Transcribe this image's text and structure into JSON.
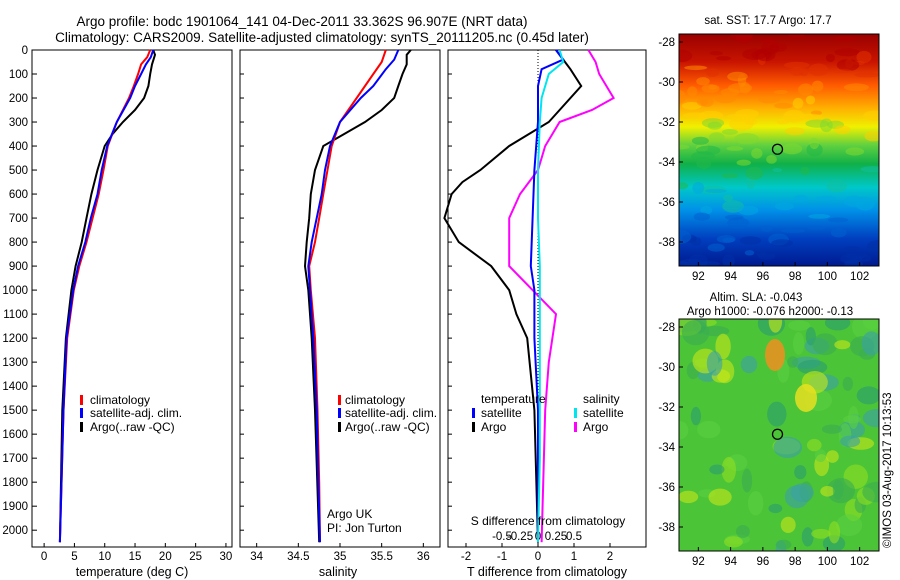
{
  "header": {
    "title1": "Argo profile: bodc 1901064_141 04-Dec-2011 33.362S 96.907E (NRT data)",
    "title2": "Climatology: CARS2009. Satellite-adjusted climatology: synTS_20111205.nc (0.45d later)"
  },
  "colors": {
    "climatology": "#ff0000",
    "satellite": "#0000ff",
    "argo": "#000000",
    "sat_cyan": "#00e5ee",
    "argo_magenta": "#ff00ff"
  },
  "depth_ticks": [
    "0",
    "100",
    "200",
    "300",
    "400",
    "500",
    "600",
    "700",
    "800",
    "900",
    "1000",
    "1100",
    "1200",
    "1300",
    "1400",
    "1500",
    "1600",
    "1700",
    "1800",
    "1900",
    "2000"
  ],
  "chart_data": [
    {
      "type": "line",
      "xlabel": "temperature (deg C)",
      "xlim": [
        -2,
        31
      ],
      "ylim": [
        2070,
        0
      ],
      "xticks": [
        "0",
        "5",
        "10",
        "15",
        "20",
        "25",
        "30"
      ],
      "legend": [
        "climatology",
        "satellite-adj. clim.",
        "Argo(..raw -QC)"
      ],
      "series": [
        {
          "name": "climatology",
          "depth": [
            0,
            30,
            60,
            100,
            150,
            200,
            300,
            400,
            500,
            600,
            700,
            800,
            900,
            1000,
            1200,
            1500,
            2050
          ],
          "values": [
            17.5,
            17,
            16,
            15.5,
            14.8,
            14,
            12,
            10.5,
            9.8,
            9,
            8,
            7,
            5.8,
            4.9,
            3.8,
            3.2,
            2.6
          ]
        },
        {
          "name": "satellite-adj. clim.",
          "depth": [
            0,
            30,
            60,
            100,
            150,
            200,
            300,
            400,
            500,
            600,
            700,
            800,
            900,
            1000,
            1200,
            1500,
            2050
          ],
          "values": [
            18,
            17.6,
            16.8,
            16,
            15,
            14.2,
            12,
            10.4,
            9.5,
            8.8,
            7.7,
            6.8,
            5.6,
            4.8,
            3.7,
            3.2,
            2.6
          ]
        },
        {
          "name": "Argo(..raw -QC)",
          "depth": [
            0,
            20,
            60,
            100,
            150,
            200,
            250,
            300,
            350,
            400,
            500,
            600,
            700,
            800,
            900,
            1000,
            1200,
            1500,
            2050
          ],
          "values": [
            18,
            18.3,
            17.8,
            17.5,
            17.2,
            16.5,
            15,
            13,
            11.3,
            10,
            8.8,
            7.8,
            7,
            6.2,
            5.2,
            4.5,
            3.6,
            3,
            2.6
          ]
        }
      ]
    },
    {
      "type": "line",
      "xlabel": "salinity",
      "xlim": [
        33.8,
        36.2
      ],
      "ylim": [
        2070,
        0
      ],
      "xticks": [
        "34",
        "34.5",
        "35",
        "35.5",
        "36"
      ],
      "legend": [
        "climatology",
        "satellite-adj. clim.",
        "Argo(..raw -QC)"
      ],
      "annotation": [
        "Argo UK",
        "PI: Jon Turton"
      ],
      "series": [
        {
          "name": "climatology",
          "depth": [
            0,
            50,
            100,
            150,
            200,
            300,
            400,
            500,
            600,
            700,
            800,
            900,
            1000,
            1200,
            1500,
            1800,
            2050
          ],
          "values": [
            35.55,
            35.5,
            35.4,
            35.3,
            35.2,
            35,
            34.9,
            34.85,
            34.8,
            34.75,
            34.7,
            34.63,
            34.65,
            34.7,
            34.73,
            34.75,
            34.76
          ]
        },
        {
          "name": "satellite-adj. clim.",
          "depth": [
            0,
            40,
            80,
            150,
            200,
            300,
            400,
            500,
            600,
            700,
            800,
            900,
            1000,
            1200,
            1500,
            1800,
            2050
          ],
          "values": [
            35.7,
            35.65,
            35.55,
            35.4,
            35.25,
            35,
            34.88,
            34.82,
            34.78,
            34.72,
            34.66,
            34.62,
            34.64,
            34.68,
            34.72,
            34.74,
            34.76
          ]
        },
        {
          "name": "Argo(..raw -QC)",
          "depth": [
            0,
            20,
            60,
            100,
            150,
            200,
            250,
            300,
            350,
            400,
            500,
            600,
            700,
            800,
            900,
            1000,
            1200,
            1500,
            2050
          ],
          "values": [
            35.85,
            35.8,
            35.8,
            35.75,
            35.7,
            35.65,
            35.5,
            35.3,
            35.05,
            34.8,
            34.7,
            34.65,
            34.63,
            34.6,
            34.58,
            34.62,
            34.66,
            34.7,
            34.75
          ]
        }
      ]
    },
    {
      "type": "line",
      "xlabel": "T difference from climatology",
      "xlabel_top": "S difference from climatology",
      "xlim": [
        -2.5,
        3
      ],
      "ylim": [
        2070,
        0
      ],
      "xticks_bottom": [
        "-2",
        "-1",
        "0",
        "1",
        "2"
      ],
      "xticks_top": [
        "-0.5",
        "-0.25",
        "0",
        "0.25",
        "0.5"
      ],
      "legend_titles": [
        "temperature",
        "salinity"
      ],
      "legend": [
        "satellite",
        "Argo",
        "satellite",
        "Argo"
      ],
      "series": [
        {
          "name": "temperature satellite",
          "depth": [
            0,
            40,
            80,
            150,
            300,
            500,
            700,
            900,
            1000,
            1200,
            1500,
            2050
          ],
          "values": [
            0.5,
            0.7,
            0.1,
            0,
            0,
            -0.1,
            -0.15,
            -0.2,
            -0.1,
            -0.1,
            0,
            0
          ]
        },
        {
          "name": "temperature Argo",
          "depth": [
            0,
            40,
            80,
            150,
            300,
            400,
            500,
            550,
            600,
            700,
            800,
            900,
            1000,
            1100,
            1200,
            1500,
            2050
          ],
          "values": [
            0.5,
            0.7,
            0.9,
            1.2,
            0.3,
            -0.8,
            -1.6,
            -2.1,
            -2.4,
            -2.6,
            -2.2,
            -1.3,
            -0.8,
            -0.6,
            -0.3,
            -0.1,
            0
          ]
        },
        {
          "name": "salinity satellite",
          "depth": [
            0,
            50,
            100,
            200,
            300,
            500,
            700,
            900,
            1100,
            1400,
            1700,
            2050
          ],
          "values": [
            0.6,
            0.7,
            0.3,
            0.1,
            0.05,
            0,
            0,
            0.05,
            0.05,
            0.05,
            0.05,
            0
          ]
        },
        {
          "name": "salinity Argo",
          "depth": [
            0,
            50,
            100,
            150,
            200,
            250,
            300,
            400,
            500,
            600,
            700,
            900,
            1100,
            1300,
            1500,
            2050
          ],
          "values": [
            1.4,
            1.6,
            1.7,
            1.9,
            2.1,
            1.5,
            0.6,
            0.2,
            0,
            -0.5,
            -0.8,
            -0.8,
            0.5,
            0.3,
            0.2,
            0.1
          ]
        }
      ]
    },
    {
      "type": "heatmap",
      "title": "sat. SST: 17.7 Argo: 17.7",
      "xticks": [
        "92",
        "94",
        "96",
        "98",
        "100",
        "102"
      ],
      "yticks": [
        "-28",
        "-30",
        "-32",
        "-34",
        "-36",
        "-38"
      ],
      "xlim": [
        90.8,
        103.2
      ],
      "ylim": [
        -39.2,
        -27.6
      ],
      "marker": {
        "lon": 96.907,
        "lat": -33.362
      }
    },
    {
      "type": "heatmap",
      "title_line1": "Altim. SLA: -0.043",
      "title_line2": "Argo h1000: -0.076 h2000: -0.13",
      "xticks": [
        "92",
        "94",
        "96",
        "98",
        "100",
        "102"
      ],
      "yticks": [
        "-28",
        "-30",
        "-32",
        "-34",
        "-36",
        "-38"
      ],
      "xlim": [
        90.8,
        103.2
      ],
      "ylim": [
        -39.2,
        -27.6
      ],
      "marker": {
        "lon": 96.907,
        "lat": -33.362
      }
    }
  ],
  "footer": {
    "credit": "©IMOS 03-Aug-2017 10:13:53"
  }
}
